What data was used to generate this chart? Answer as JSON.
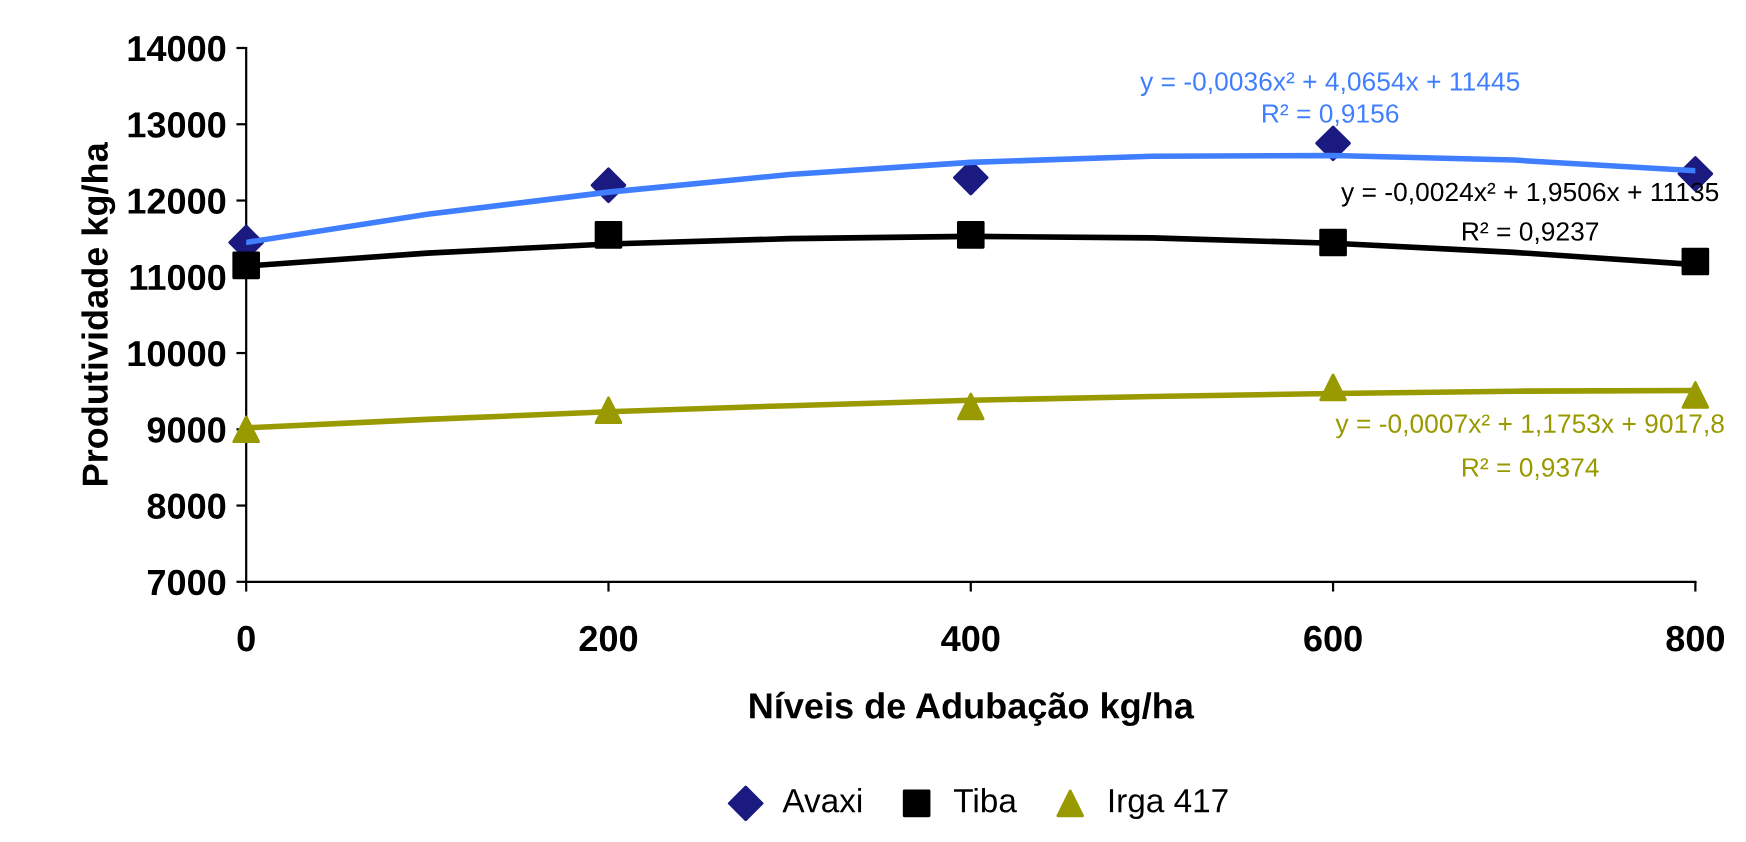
{
  "chart_data": {
    "type": "scatter",
    "xlabel": "Níveis de Adubação kg/ha",
    "ylabel": "Produtividade kg/ha",
    "x": [
      0,
      200,
      400,
      600,
      800
    ],
    "series": [
      {
        "name": "Avaxi",
        "marker": "diamond",
        "color": "#1a1a80",
        "values": [
          11450,
          12200,
          12300,
          12750,
          12350
        ]
      },
      {
        "name": "Tiba",
        "marker": "square",
        "color": "#000000",
        "values": [
          11150,
          11550,
          11550,
          11450,
          11200
        ]
      },
      {
        "name": "Irga 417",
        "marker": "triangle",
        "color": "#999900",
        "values": [
          9000,
          9250,
          9300,
          9550,
          9450
        ]
      },
      {
        "type": "line",
        "marker": "none",
        "line_style": "solid",
        "color": "#3f7fff",
        "x": [
          0,
          100,
          200,
          300,
          400,
          500,
          600,
          700,
          800
        ],
        "values": [
          11450,
          11820,
          12110,
          12340,
          12500,
          12580,
          12590,
          12530,
          12390
        ]
      },
      {
        "type": "line",
        "marker": "none",
        "line_style": "solid",
        "color": "#000000",
        "x": [
          0,
          100,
          200,
          300,
          400,
          500,
          600,
          700,
          800
        ],
        "values": [
          11140,
          11310,
          11430,
          11500,
          11530,
          11510,
          11440,
          11320,
          11160
        ]
      },
      {
        "type": "line",
        "marker": "none",
        "line_style": "solid",
        "color": "#999900",
        "x": [
          0,
          100,
          200,
          300,
          400,
          500,
          600,
          700,
          800
        ],
        "values": [
          9020,
          9130,
          9230,
          9310,
          9380,
          9430,
          9470,
          9500,
          9510
        ]
      }
    ],
    "annotations": [
      "y = -0,0036x² + 4,0654x + 11445",
      "R² = 0,9156",
      "y = -0,0024x² + 1,9506x + 11135",
      "R² = 0,9237",
      "y = -0,0007x² + 1,1753x + 9017,8",
      "R² = 0,9374"
    ],
    "xlim": [
      0,
      800
    ],
    "xticks": [
      0,
      200,
      400,
      600,
      800
    ],
    "ylim": [
      7000,
      14000
    ],
    "yticks": [
      7000,
      8000,
      9000,
      10000,
      11000,
      12000,
      13000,
      14000
    ],
    "grid": false,
    "legend": "bottom"
  }
}
